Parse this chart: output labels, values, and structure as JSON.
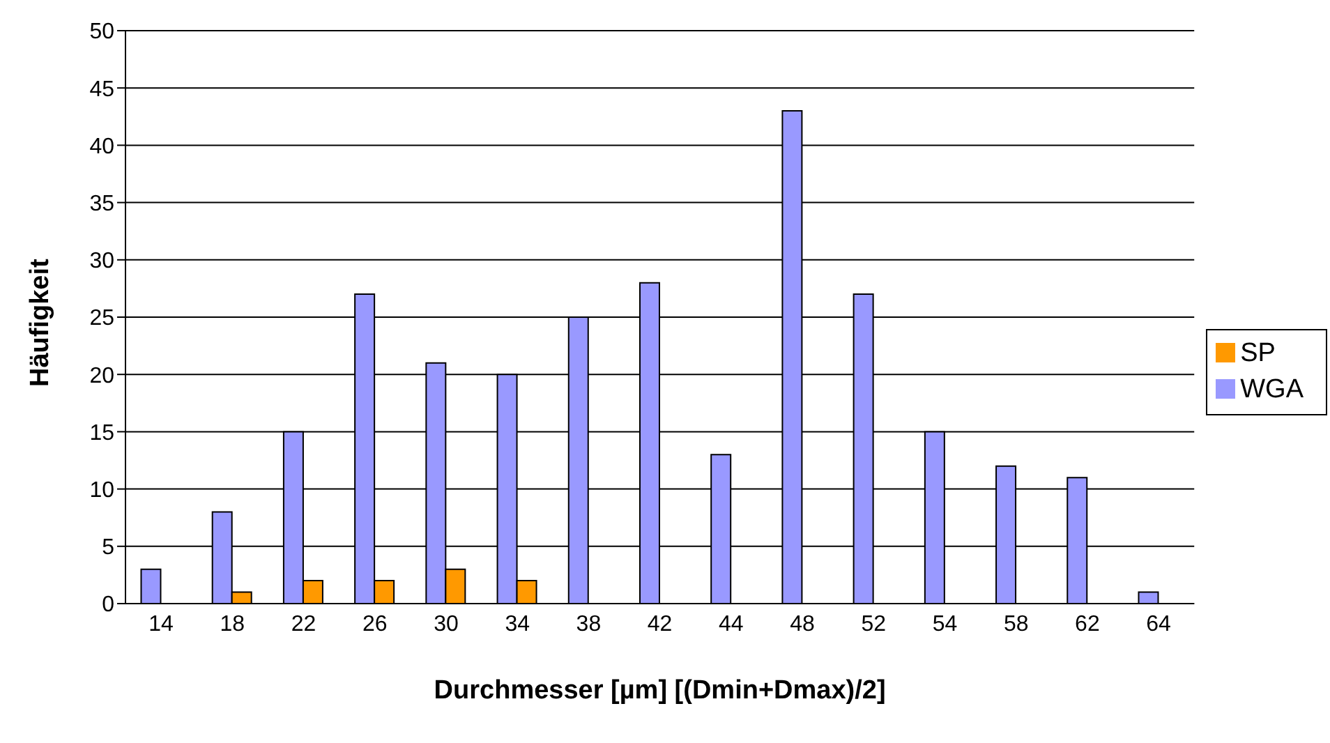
{
  "chart_data": {
    "type": "bar",
    "xlabel": "Durchmesser [µm]  [(Dmin+Dmax)/2]",
    "ylabel": "Häufigkeit",
    "categories": [
      "14",
      "18",
      "22",
      "26",
      "30",
      "34",
      "38",
      "42",
      "44",
      "48",
      "52",
      "54",
      "58",
      "62",
      "64"
    ],
    "series": [
      {
        "name": "WGA",
        "color": "#9999ff",
        "values": [
          3,
          8,
          15,
          27,
          21,
          20,
          25,
          28,
          13,
          43,
          27,
          15,
          12,
          11,
          1
        ]
      },
      {
        "name": "SP",
        "color": "#ff9900",
        "values": [
          0,
          1,
          2,
          2,
          3,
          2,
          0,
          0,
          0,
          0,
          0,
          0,
          0,
          0,
          0
        ]
      }
    ],
    "ylim": [
      0,
      50
    ],
    "yticks": [
      0,
      5,
      10,
      15,
      20,
      25,
      30,
      35,
      40,
      45,
      50
    ],
    "grid": "y",
    "legend": "right"
  }
}
